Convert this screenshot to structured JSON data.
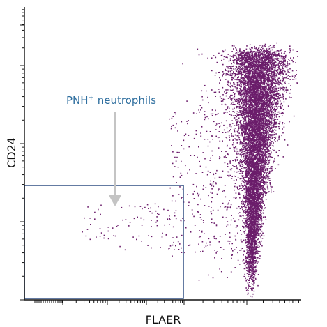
{
  "chart_data": {
    "type": "scatter",
    "title": "",
    "xlabel": "FLAER",
    "ylabel": "CD24",
    "xscale": "log",
    "yscale": "log",
    "grid": false,
    "legend": "none",
    "colors": {
      "points": "#6b1d6b",
      "gate": "#3d5a8a",
      "annotation_text": "#2f6f9f",
      "arrow": "#c4c4c4",
      "axes": "#111111"
    },
    "populations": [
      {
        "name": "main",
        "description": "FLAER-bright, CD24-bright neutrophil cluster",
        "relative_x_range": [
          0.7,
          0.97
        ],
        "relative_y_range": [
          0.02,
          0.85
        ]
      },
      {
        "name": "pnh",
        "description": "FLAER-negative, CD24-negative cells inside gate",
        "relative_x_range": [
          0.2,
          0.55
        ],
        "relative_y_range": [
          0.17,
          0.33
        ]
      }
    ],
    "annotations": [
      {
        "text": "PNH",
        "superscript": "+",
        "suffix": " neutrophils",
        "target": "gate"
      }
    ]
  }
}
